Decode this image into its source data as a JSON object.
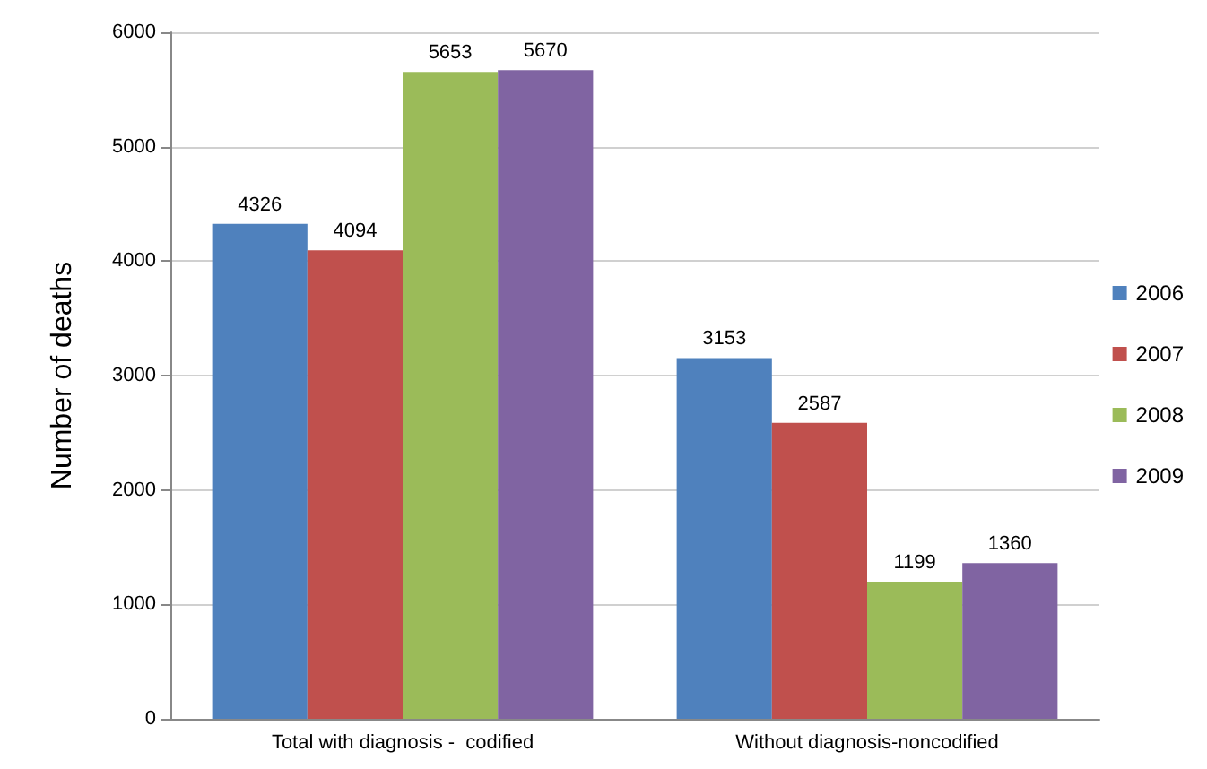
{
  "chart_data": {
    "type": "bar",
    "ylabel": "Number of deaths",
    "categories": [
      "Total with diagnosis -  codified",
      "Without diagnosis-noncodified"
    ],
    "series": [
      {
        "name": "2006",
        "color": "#4f81bd",
        "values": [
          4326,
          3153
        ]
      },
      {
        "name": "2007",
        "color": "#c0504d",
        "values": [
          4094,
          2587
        ]
      },
      {
        "name": "2008",
        "color": "#9bbb59",
        "values": [
          5653,
          1199
        ]
      },
      {
        "name": "2009",
        "color": "#8064a2",
        "values": [
          5670,
          1360
        ]
      }
    ],
    "ylim": [
      0,
      6000
    ],
    "yticks": [
      0,
      1000,
      2000,
      3000,
      4000,
      5000,
      6000
    ],
    "grid": "y",
    "legend": "right",
    "data_labels": true
  }
}
